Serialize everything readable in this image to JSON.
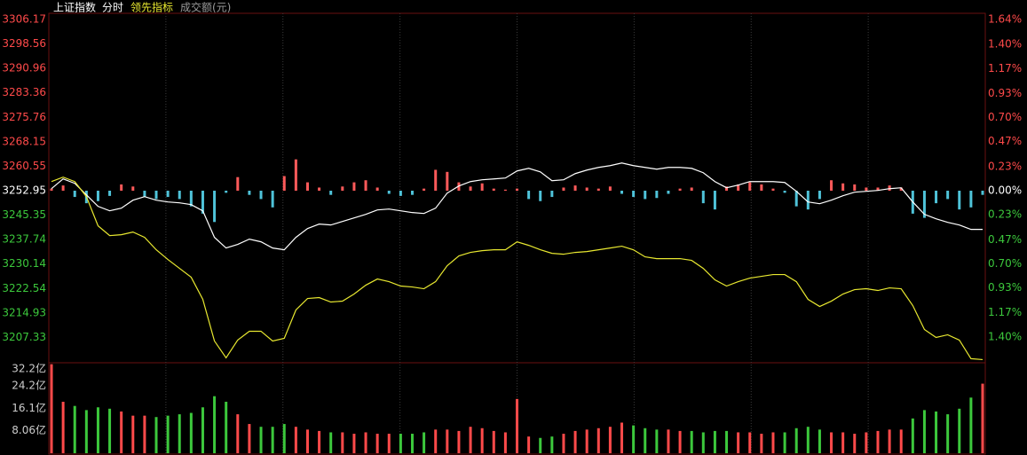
{
  "header": {
    "items": [
      "上证指数",
      "分时",
      "领先指标",
      "成交额(元)"
    ]
  },
  "chart_data": [
    {
      "type": "line",
      "ylim": [
        3199.73,
        3306.17
      ],
      "yticks": [
        3306.17,
        3298.56,
        3290.96,
        3283.36,
        3275.76,
        3268.15,
        3260.55,
        3252.95,
        3245.35,
        3237.74,
        3230.14,
        3222.54,
        3214.93,
        3207.33
      ],
      "y2lim": [
        -1.64,
        1.64
      ],
      "y2ticks": [
        {
          "value": 1.64,
          "label": "1.64%"
        },
        {
          "value": 1.4,
          "label": "1.40%"
        },
        {
          "value": 1.17,
          "label": "1.17%"
        },
        {
          "value": 0.93,
          "label": "0.93%"
        },
        {
          "value": 0.7,
          "label": "0.70%"
        },
        {
          "value": 0.47,
          "label": "0.47%"
        },
        {
          "value": 0.23,
          "label": "0.23%"
        },
        {
          "value": 0,
          "label": "0.00%"
        },
        {
          "value": -0.23,
          "label": "0.23%"
        },
        {
          "value": -0.47,
          "label": "0.47%"
        },
        {
          "value": -0.7,
          "label": "0.70%"
        },
        {
          "value": -0.93,
          "label": "0.93%"
        },
        {
          "value": -1.17,
          "label": "1.17%"
        },
        {
          "value": -1.4,
          "label": "1.40%"
        }
      ],
      "tick_colors": {
        "up": "#ff4a4a",
        "down": "#3cc83c",
        "flat": "#ffffff"
      },
      "series": [
        {
          "type": "bar",
          "axis": "y2",
          "up_color": "#ff5a5a",
          "down_color": "#4fc3d9",
          "values": [
            0.02,
            0.05,
            -0.06,
            -0.12,
            -0.1,
            -0.05,
            0.06,
            0.04,
            -0.06,
            -0.08,
            -0.06,
            -0.08,
            -0.15,
            -0.22,
            -0.3,
            -0.02,
            0.13,
            -0.04,
            -0.08,
            -0.16,
            0.14,
            0.3,
            0.08,
            0.03,
            -0.04,
            0.04,
            0.08,
            0.1,
            0.03,
            -0.03,
            -0.05,
            -0.04,
            0.02,
            0.2,
            0.18,
            0.08,
            0.04,
            0.07,
            0.02,
            0.01,
            0.02,
            -0.08,
            -0.1,
            -0.06,
            0.03,
            0.05,
            0.03,
            0.02,
            0.04,
            -0.03,
            -0.06,
            -0.08,
            -0.07,
            -0.03,
            0.02,
            0.03,
            -0.12,
            -0.18,
            0.04,
            0.06,
            0.08,
            0.06,
            0.02,
            -0.02,
            -0.15,
            -0.18,
            -0.08,
            0.1,
            0.07,
            0.06,
            0.03,
            0.03,
            0.05,
            0.03,
            -0.22,
            -0.26,
            -0.12,
            -0.08,
            -0.18,
            -0.16,
            -0.04
          ]
        },
        {
          "type": "line",
          "color": "#ffffff",
          "values": [
            3253.58,
            3256.61,
            3255.23,
            3251.65,
            3248.08,
            3246.7,
            3247.52,
            3250.0,
            3251.1,
            3250.0,
            3249.45,
            3249.18,
            3248.63,
            3246.7,
            3238.44,
            3235.13,
            3236.24,
            3237.89,
            3237.06,
            3235.13,
            3234.58,
            3238.44,
            3241.19,
            3242.57,
            3242.29,
            3243.39,
            3244.5,
            3245.6,
            3246.97,
            3247.25,
            3246.7,
            3246.15,
            3245.87,
            3247.52,
            3252.21,
            3254.41,
            3255.78,
            3256.34,
            3256.61,
            3256.89,
            3259.09,
            3259.91,
            3258.81,
            3256.06,
            3256.34,
            3258.26,
            3259.36,
            3260.19,
            3260.74,
            3261.57,
            3260.74,
            3260.19,
            3259.64,
            3260.19,
            3260.19,
            3259.91,
            3258.54,
            3255.78,
            3253.86,
            3254.68,
            3255.78,
            3255.78,
            3255.78,
            3255.51,
            3252.76,
            3249.45,
            3248.9,
            3250.0,
            3251.38,
            3252.48,
            3252.76,
            3253.03,
            3253.58,
            3253.86,
            3249.45,
            3245.6,
            3244.22,
            3243.12,
            3242.29,
            3240.92,
            3240.92
          ]
        },
        {
          "type": "line",
          "color": "#e8e830",
          "values": [
            3255.78,
            3257.16,
            3255.78,
            3251.1,
            3242.02,
            3238.99,
            3239.26,
            3240.09,
            3238.44,
            3234.58,
            3231.56,
            3228.8,
            3226.05,
            3219.17,
            3206.23,
            3200.99,
            3206.5,
            3209.25,
            3209.25,
            3206.23,
            3207.05,
            3215.86,
            3219.44,
            3219.72,
            3218.34,
            3218.61,
            3220.82,
            3223.57,
            3225.5,
            3224.67,
            3223.3,
            3223.02,
            3222.47,
            3224.67,
            3229.63,
            3232.66,
            3233.76,
            3234.31,
            3234.58,
            3234.58,
            3237.06,
            3235.96,
            3234.58,
            3233.48,
            3233.21,
            3233.76,
            3234.03,
            3234.58,
            3235.13,
            3235.69,
            3234.58,
            3232.38,
            3231.83,
            3231.83,
            3231.83,
            3231.28,
            3228.8,
            3225.22,
            3223.3,
            3224.67,
            3225.77,
            3226.32,
            3226.87,
            3226.87,
            3224.67,
            3219.17,
            3216.96,
            3218.61,
            3220.82,
            3222.19,
            3222.47,
            3221.92,
            3222.74,
            3222.47,
            3217.24,
            3209.8,
            3207.33,
            3208.15,
            3206.5,
            3200.72,
            3200.44
          ]
        }
      ]
    },
    {
      "type": "bar",
      "ylim": [
        0,
        32.2
      ],
      "yticks": [
        {
          "value": 32.2,
          "label": "32.2亿"
        },
        {
          "value": 24.2,
          "label": "24.2亿"
        },
        {
          "value": 16.1,
          "label": "16.1亿"
        },
        {
          "value": 8.06,
          "label": "8.06亿"
        }
      ],
      "up_color": "#ff4a4a",
      "down_color": "#3cc83c",
      "values": [
        32.0,
        18.5,
        17.0,
        15.5,
        16.5,
        16.0,
        15.0,
        13.5,
        13.5,
        13.0,
        13.5,
        14.0,
        14.5,
        16.5,
        20.5,
        18.5,
        14.0,
        10.5,
        9.5,
        9.5,
        10.5,
        9.5,
        8.5,
        8.0,
        7.5,
        7.5,
        7.0,
        7.5,
        7.0,
        7.0,
        7.0,
        7.0,
        7.5,
        8.5,
        8.5,
        8.0,
        9.5,
        9.0,
        8.0,
        7.5,
        19.5,
        6.0,
        5.5,
        6.0,
        7.0,
        8.0,
        8.5,
        9.0,
        9.5,
        11.0,
        10.0,
        9.0,
        8.5,
        8.5,
        8.0,
        8.0,
        7.5,
        8.0,
        8.0,
        7.5,
        7.5,
        7.0,
        7.5,
        7.5,
        9.0,
        9.5,
        8.5,
        7.5,
        7.5,
        7.0,
        7.5,
        8.0,
        8.5,
        8.5,
        12.5,
        15.5,
        15.0,
        14.0,
        16.0,
        20.0,
        25.0
      ]
    }
  ]
}
